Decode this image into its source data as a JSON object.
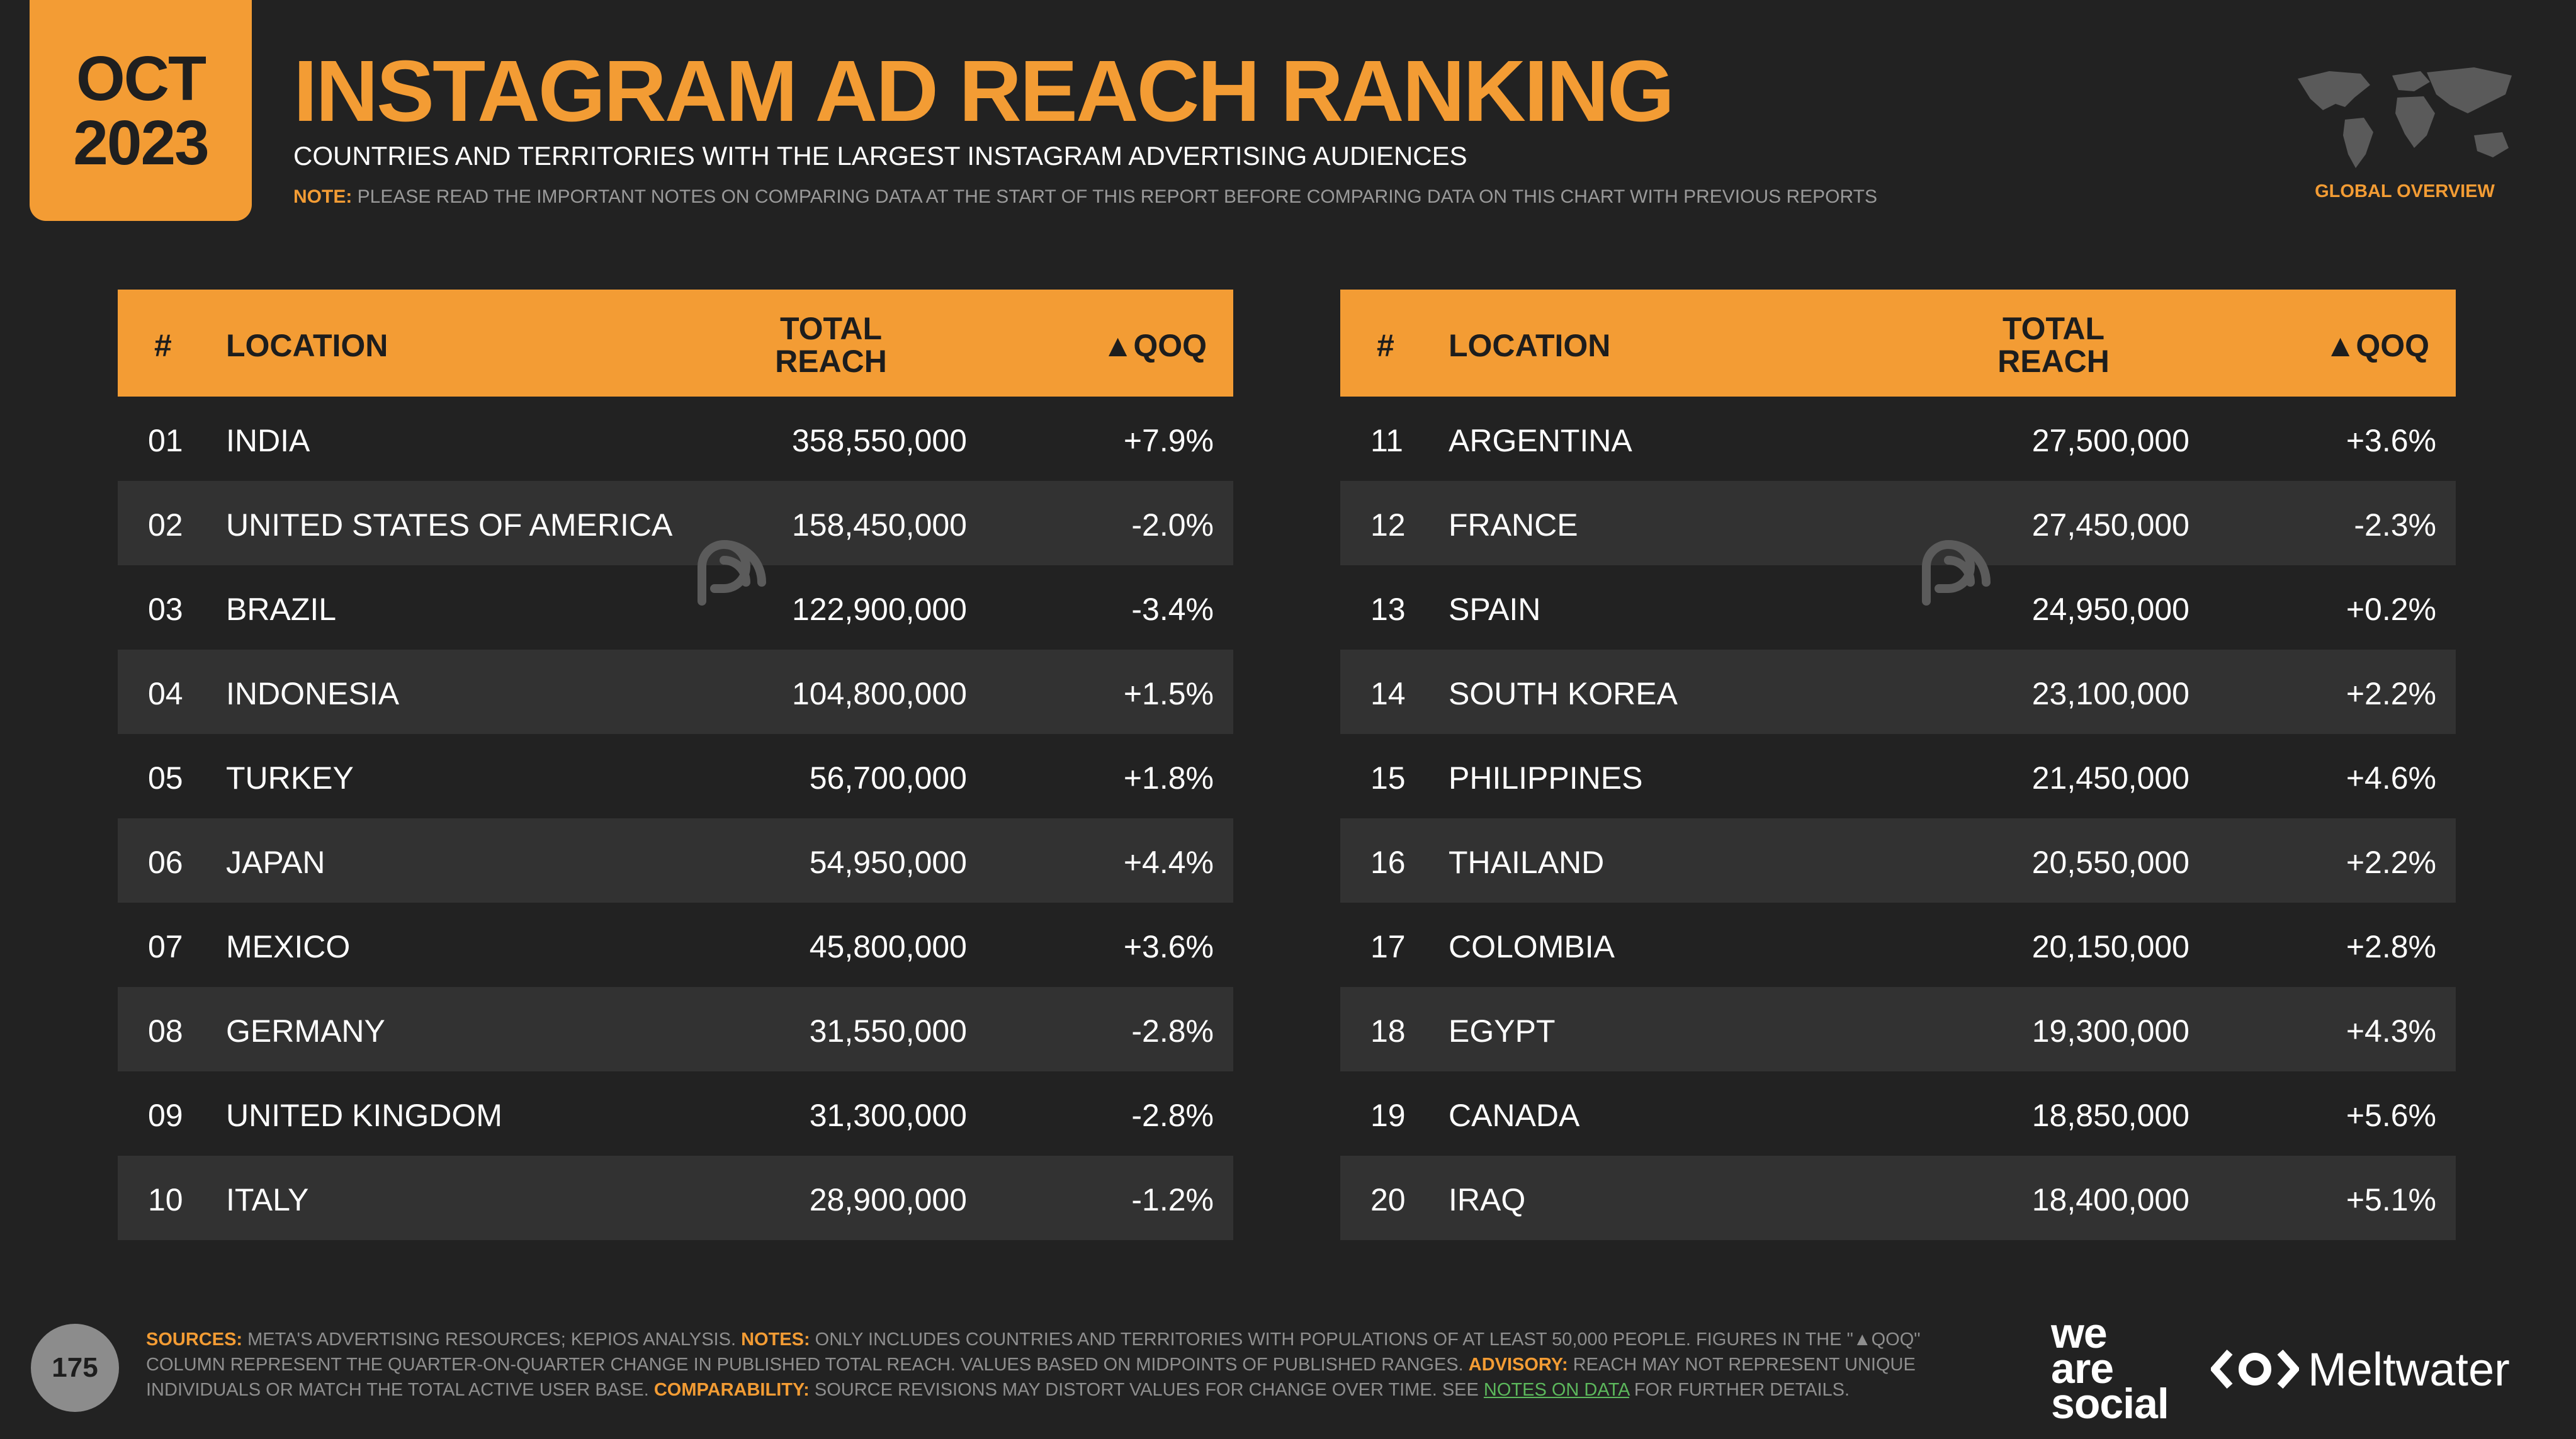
{
  "badge": {
    "month": "OCT",
    "year": "2023"
  },
  "header": {
    "title": "INSTAGRAM AD REACH RANKING",
    "subtitle": "COUNTRIES AND TERRITORIES WITH THE LARGEST INSTAGRAM ADVERTISING AUDIENCES",
    "note_label": "NOTE:",
    "note_text": "PLEASE READ THE IMPORTANT NOTES ON COMPARING DATA AT THE START OF THIS REPORT BEFORE COMPARING DATA ON THIS CHART WITH PREVIOUS REPORTS",
    "global_label": "GLOBAL OVERVIEW"
  },
  "columns": {
    "num": "#",
    "location": "LOCATION",
    "reach": "TOTAL\nREACH",
    "qoq": "▲QOQ"
  },
  "rows_left": [
    {
      "num": "01",
      "location": "INDIA",
      "reach": "358,550,000",
      "qoq": "+7.9%"
    },
    {
      "num": "02",
      "location": "UNITED STATES OF AMERICA",
      "reach": "158,450,000",
      "qoq": "-2.0%"
    },
    {
      "num": "03",
      "location": "BRAZIL",
      "reach": "122,900,000",
      "qoq": "-3.4%"
    },
    {
      "num": "04",
      "location": "INDONESIA",
      "reach": "104,800,000",
      "qoq": "+1.5%"
    },
    {
      "num": "05",
      "location": "TURKEY",
      "reach": "56,700,000",
      "qoq": "+1.8%"
    },
    {
      "num": "06",
      "location": "JAPAN",
      "reach": "54,950,000",
      "qoq": "+4.4%"
    },
    {
      "num": "07",
      "location": "MEXICO",
      "reach": "45,800,000",
      "qoq": "+3.6%"
    },
    {
      "num": "08",
      "location": "GERMANY",
      "reach": "31,550,000",
      "qoq": "-2.8%"
    },
    {
      "num": "09",
      "location": "UNITED KINGDOM",
      "reach": "31,300,000",
      "qoq": "-2.8%"
    },
    {
      "num": "10",
      "location": "ITALY",
      "reach": "28,900,000",
      "qoq": "-1.2%"
    }
  ],
  "rows_right": [
    {
      "num": "11",
      "location": "ARGENTINA",
      "reach": "27,500,000",
      "qoq": "+3.6%"
    },
    {
      "num": "12",
      "location": "FRANCE",
      "reach": "27,450,000",
      "qoq": "-2.3%"
    },
    {
      "num": "13",
      "location": "SPAIN",
      "reach": "24,950,000",
      "qoq": "+0.2%"
    },
    {
      "num": "14",
      "location": "SOUTH KOREA",
      "reach": "23,100,000",
      "qoq": "+2.2%"
    },
    {
      "num": "15",
      "location": "PHILIPPINES",
      "reach": "21,450,000",
      "qoq": "+4.6%"
    },
    {
      "num": "16",
      "location": "THAILAND",
      "reach": "20,550,000",
      "qoq": "+2.2%"
    },
    {
      "num": "17",
      "location": "COLOMBIA",
      "reach": "20,150,000",
      "qoq": "+2.8%"
    },
    {
      "num": "18",
      "location": "EGYPT",
      "reach": "19,300,000",
      "qoq": "+4.3%"
    },
    {
      "num": "19",
      "location": "CANADA",
      "reach": "18,850,000",
      "qoq": "+5.6%"
    },
    {
      "num": "20",
      "location": "IRAQ",
      "reach": "18,400,000",
      "qoq": "+5.1%"
    }
  ],
  "footer": {
    "page_number": "175",
    "sources_label": "SOURCES:",
    "sources_text": " META'S ADVERTISING RESOURCES; KEPIOS ANALYSIS. ",
    "notes_label": "NOTES:",
    "notes_text": " ONLY INCLUDES COUNTRIES AND TERRITORIES WITH POPULATIONS OF AT LEAST 50,000 PEOPLE. FIGURES IN THE \"▲QOQ\" COLUMN REPRESENT THE QUARTER-ON-QUARTER CHANGE IN PUBLISHED TOTAL REACH. VALUES BASED ON MIDPOINTS OF PUBLISHED RANGES. ",
    "advisory_label": "ADVISORY:",
    "advisory_text": " REACH MAY NOT REPRESENT UNIQUE INDIVIDUALS OR MATCH THE TOTAL ACTIVE USER BASE. ",
    "comparability_label": "COMPARABILITY:",
    "comparability_text": " SOURCE REVISIONS MAY DISTORT VALUES FOR CHANGE OVER TIME. SEE ",
    "link_text": "NOTES ON DATA",
    "end_text": " FOR FURTHER DETAILS.",
    "logo_wearesocial": "we are social",
    "logo_meltwater": "Meltwater"
  },
  "colors": {
    "accent": "#F39C34",
    "background": "#222222",
    "row_alt": "#323232"
  }
}
